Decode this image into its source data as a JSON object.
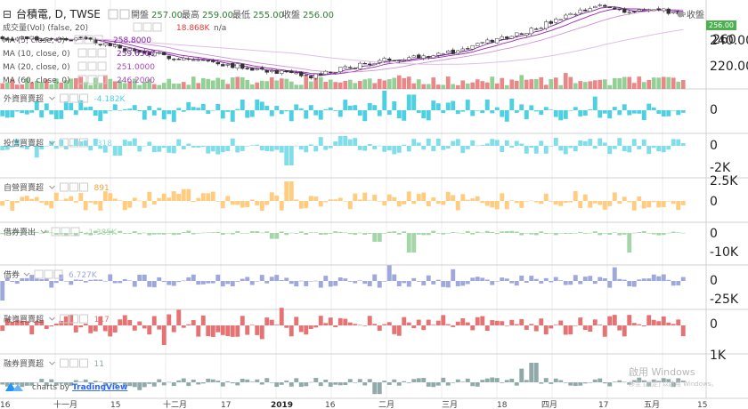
{
  "header": {
    "symbol_label": "台積電, D, TWSE",
    "open_label": "開盤",
    "open_value": "257.00",
    "high_label": "最高",
    "high_value": "259.00",
    "low_label": "最低",
    "low_value": "255.00",
    "close_label": "收盤",
    "close_value": "256.00"
  },
  "indicators": [
    {
      "label": "成交量(Vol) (false, 20)",
      "value": "18.868K",
      "extra": "n/a",
      "color": "#e53935"
    },
    {
      "label": "MA (5, close, 0)",
      "value": "258.8000",
      "color": "#7b1fa2"
    },
    {
      "label": "MA (10, close, 0)",
      "value": "259.6500",
      "color": "#7b1fa2"
    },
    {
      "label": "MA (20, close, 0)",
      "value": "251.0000",
      "color": "#ab47bc"
    },
    {
      "label": "MA (60, close, 0)",
      "value": "246.2000",
      "color": "#ab47bc"
    }
  ],
  "right_badge": {
    "text": "收盤",
    "price_tag": "256.00"
  },
  "price_axis": [
    "260",
    "240.00",
    "220.00"
  ],
  "x_axis": [
    "16",
    "十一月",
    "15",
    "十二月",
    "17",
    "2019",
    "16",
    "二月",
    "三月",
    "18",
    "四月",
    "17",
    "五月",
    "15"
  ],
  "watermark": {
    "text": "啟用 Windows",
    "subtext": "移至 [設定] 以啟用 Windows。"
  },
  "branding": {
    "prefix": "charts by",
    "brand": "TradingView"
  },
  "colors": {
    "up": "#e57373",
    "down": "#81c784",
    "grid": "#eeeeee",
    "divider": "#d0d0d0"
  },
  "chart_data": [
    {
      "type": "candlestick",
      "title": "台積電, D, TWSE",
      "series": [
        {
          "name": "MA (5, close, 0)",
          "last": 258.8
        },
        {
          "name": "MA (10, close, 0)",
          "last": 259.65
        },
        {
          "name": "MA (20, close, 0)",
          "last": 251.0
        },
        {
          "name": "MA (60, close, 0)",
          "last": 246.2
        }
      ],
      "ylim": [
        210,
        262
      ],
      "close_path": [
        {
          "t": 0,
          "v": 240
        },
        {
          "t": 0.12,
          "v": 239
        },
        {
          "t": 0.2,
          "v": 230
        },
        {
          "t": 0.3,
          "v": 224
        },
        {
          "t": 0.4,
          "v": 217
        },
        {
          "t": 0.45,
          "v": 213
        },
        {
          "t": 0.52,
          "v": 221
        },
        {
          "t": 0.58,
          "v": 226
        },
        {
          "t": 0.66,
          "v": 230
        },
        {
          "t": 0.72,
          "v": 238
        },
        {
          "t": 0.78,
          "v": 246
        },
        {
          "t": 0.84,
          "v": 256
        },
        {
          "t": 0.88,
          "v": 262
        },
        {
          "t": 0.92,
          "v": 258
        },
        {
          "t": 0.96,
          "v": 259
        },
        {
          "t": 1.0,
          "v": 256
        }
      ]
    },
    {
      "type": "bar",
      "name": "成交量(Vol) (false, 20)",
      "last": "18.868K",
      "seed": 11,
      "amp": 1.0
    },
    {
      "type": "bar",
      "name": "外資買賣超",
      "last": "-4.182K",
      "color": "#4dd0e1",
      "ticks": [
        "0"
      ],
      "seed": 21,
      "amp": 0.6,
      "spikes": [
        [
          0.56,
          1.0
        ],
        [
          0.6,
          0.8
        ],
        [
          0.87,
          0.7
        ]
      ]
    },
    {
      "type": "bar",
      "name": "投信買賣超",
      "last": "-318",
      "color": "#80deea",
      "ticks": [
        "0",
        "-2K"
      ],
      "seed": 33,
      "amp": 0.45,
      "spikes": [
        [
          0.42,
          -1.0
        ],
        [
          0.05,
          -0.6
        ],
        [
          0.17,
          -0.5
        ],
        [
          0.5,
          0.5
        ]
      ]
    },
    {
      "type": "bar",
      "name": "自營買賣超",
      "last": "891",
      "color": "#ffcc80",
      "ticks": [
        "2.5K",
        "0"
      ],
      "seed": 47,
      "amp": 0.5,
      "spikes": [
        [
          0.42,
          1.0
        ],
        [
          0.38,
          -0.5
        ],
        [
          0.27,
          0.6
        ],
        [
          0.84,
          0.5
        ]
      ]
    },
    {
      "type": "bar",
      "name": "借券賣出",
      "last": "-1.385K",
      "color": "#a5d6a7",
      "ticks": [
        "0",
        "-10K"
      ],
      "seed": 59,
      "amp": 0.12,
      "spikes": [
        [
          0.6,
          -1.0
        ],
        [
          0.92,
          -1.0
        ],
        [
          0.4,
          -0.3
        ],
        [
          0.55,
          -0.45
        ]
      ]
    },
    {
      "type": "bar",
      "name": "借券",
      "last": "6.727K",
      "color": "#9fa8da",
      "ticks": [
        "0",
        "-25K"
      ],
      "seed": 71,
      "amp": 0.35,
      "spikes": [
        [
          0.0,
          -1.0
        ],
        [
          0.57,
          0.8
        ],
        [
          0.9,
          0.7
        ],
        [
          0.66,
          0.6
        ]
      ]
    },
    {
      "type": "bar",
      "name": "融資買賣超",
      "last": "117",
      "color": "#e57373",
      "ticks": [
        "0"
      ],
      "seed": 83,
      "amp": 0.6,
      "spikes": [
        [
          0.24,
          -1.0
        ],
        [
          0.41,
          0.9
        ],
        [
          0.26,
          0.8
        ],
        [
          0.38,
          -0.7
        ]
      ]
    },
    {
      "type": "bar",
      "name": "融券買賣超",
      "last": "11",
      "color": "#8faaa8",
      "ticks": [
        "1K"
      ],
      "seed": 97,
      "amp": 0.25,
      "spikes": [
        [
          0.78,
          1.0
        ],
        [
          0.76,
          0.7
        ],
        [
          0.55,
          -0.6
        ],
        [
          0.2,
          -0.4
        ]
      ]
    }
  ]
}
